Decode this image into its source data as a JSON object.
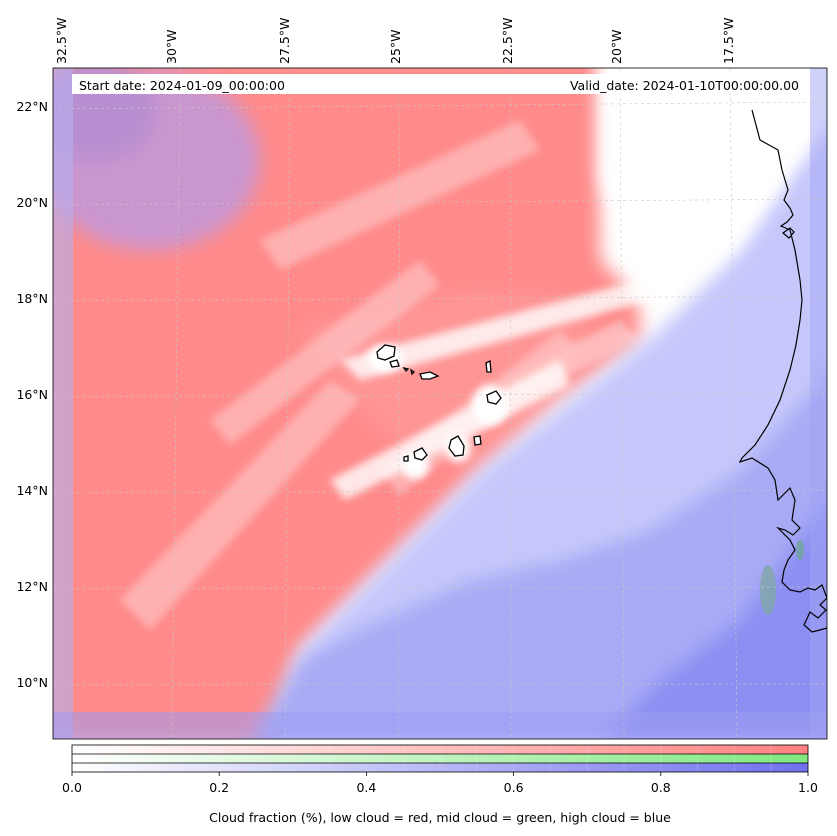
{
  "map": {
    "start_date_label": "Start date: 2024-01-09_00:00:00",
    "valid_date_label": "Valid_date: 2024-01-10T00:00:00.00",
    "lon_range": [
      -32.8,
      -15.2
    ],
    "lat_range": [
      8.8,
      22.8
    ],
    "lon_ticks": [
      {
        "value": -32.5,
        "label": "32.5°W"
      },
      {
        "value": -30.0,
        "label": "30°W"
      },
      {
        "value": -27.5,
        "label": "27.5°W"
      },
      {
        "value": -25.0,
        "label": "25°W"
      },
      {
        "value": -22.5,
        "label": "22.5°W"
      },
      {
        "value": -20.0,
        "label": "20°W"
      },
      {
        "value": -17.5,
        "label": "17.5°W"
      }
    ],
    "lat_ticks": [
      {
        "value": 22,
        "label": "22°N"
      },
      {
        "value": 20,
        "label": "20°N"
      },
      {
        "value": 18,
        "label": "18°N"
      },
      {
        "value": 16,
        "label": "16°N"
      },
      {
        "value": 14,
        "label": "14°N"
      },
      {
        "value": 12,
        "label": "12°N"
      },
      {
        "value": 10,
        "label": "10°N"
      }
    ],
    "colors": {
      "low_cloud": "#ff8080",
      "mid_cloud": "#80e880",
      "high_cloud": "#8080f0",
      "clear": "#ffffff",
      "coastline": "#000000",
      "gridline": "#c8c8c8"
    }
  },
  "colorbar": {
    "ticks": [
      {
        "value": 0.0,
        "label": "0.0"
      },
      {
        "value": 0.2,
        "label": "0.2"
      },
      {
        "value": 0.4,
        "label": "0.4"
      },
      {
        "value": 0.6,
        "label": "0.6"
      },
      {
        "value": 0.8,
        "label": "0.8"
      },
      {
        "value": 1.0,
        "label": "1.0"
      }
    ],
    "range": [
      0,
      1
    ],
    "caption": "Cloud fraction (%), low cloud = red, mid cloud = green, high cloud = blue"
  }
}
